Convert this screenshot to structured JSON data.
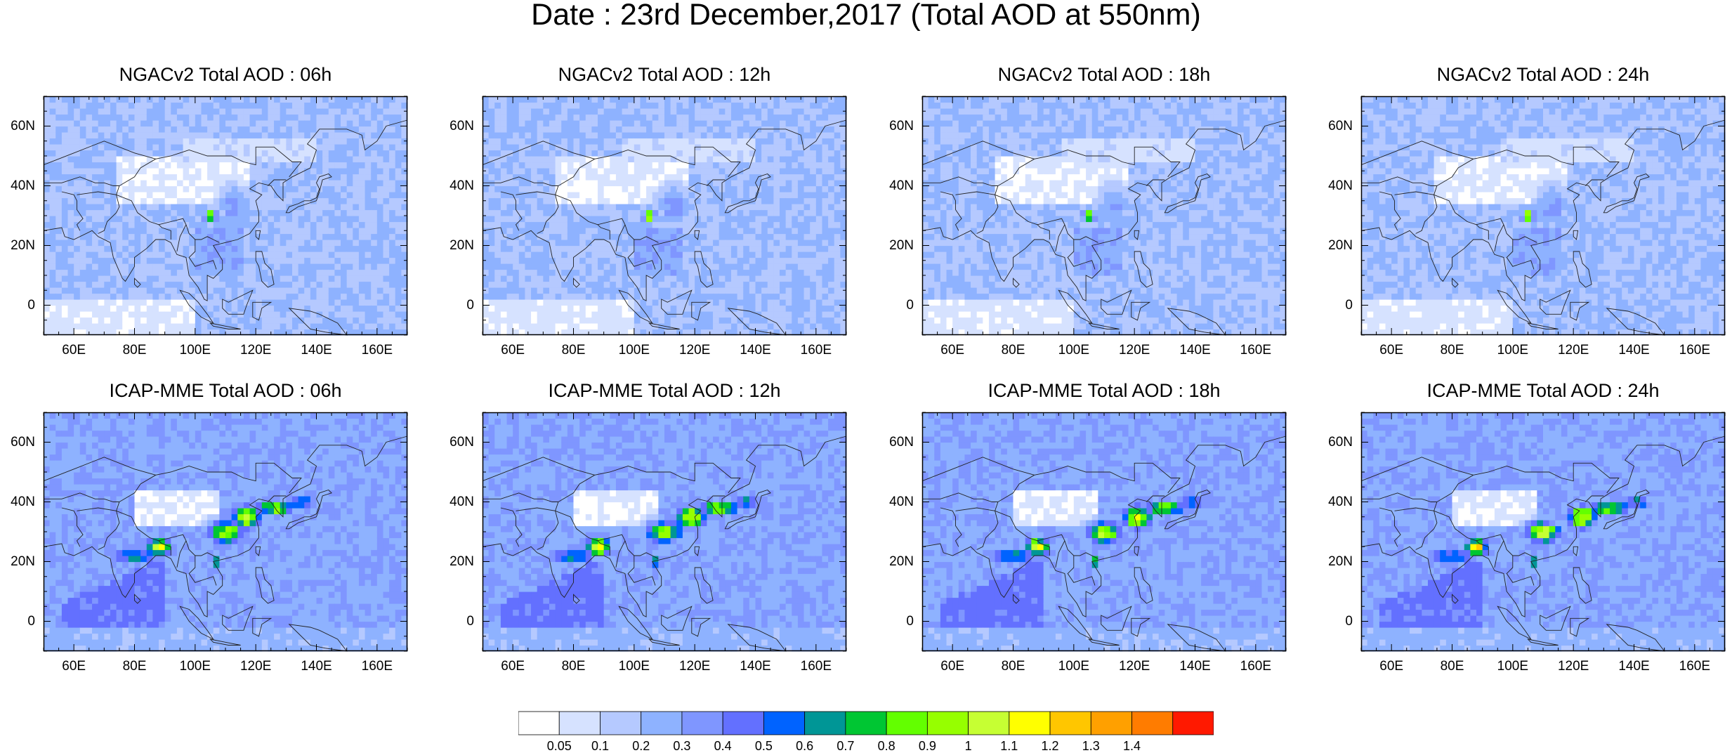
{
  "figure_title": "Date : 23rd December,2017 (Total AOD at 550nm)",
  "panels": [
    {
      "title": "NGACv2 Total AOD : 06h",
      "model": "ngac",
      "hour": 6
    },
    {
      "title": "NGACv2 Total AOD : 12h",
      "model": "ngac",
      "hour": 12
    },
    {
      "title": "NGACv2 Total AOD : 18h",
      "model": "ngac",
      "hour": 18
    },
    {
      "title": "NGACv2 Total AOD : 24h",
      "model": "ngac",
      "hour": 24
    },
    {
      "title": "ICAP-MME Total AOD : 06h",
      "model": "icap",
      "hour": 6
    },
    {
      "title": "ICAP-MME Total AOD : 12h",
      "model": "icap",
      "hour": 12
    },
    {
      "title": "ICAP-MME Total AOD : 18h",
      "model": "icap",
      "hour": 18
    },
    {
      "title": "ICAP-MME Total AOD : 24h",
      "model": "icap",
      "hour": 24
    }
  ],
  "map_extent": {
    "lon": [
      50,
      170
    ],
    "lat": [
      -10,
      70
    ]
  },
  "lon_ticks": [
    "60E",
    "80E",
    "100E",
    "120E",
    "140E",
    "160E"
  ],
  "lat_ticks": [
    "60N",
    "40N",
    "20N",
    "0"
  ],
  "colorbar": {
    "labels": [
      "0.05",
      "0.1",
      "0.2",
      "0.3",
      "0.4",
      "0.5",
      "0.6",
      "0.7",
      "0.8",
      "0.9",
      "1",
      "1.1",
      "1.2",
      "1.3",
      "1.4"
    ],
    "colors": [
      "#ffffff",
      "#d6e2ff",
      "#b5c9ff",
      "#8eb2ff",
      "#7f96ff",
      "#6370ff",
      "#0063ff",
      "#009696",
      "#00c633",
      "#63ff00",
      "#96ff00",
      "#c6ff33",
      "#ffff00",
      "#ffc600",
      "#ffa000",
      "#ff7c00",
      "#ff1900"
    ]
  },
  "hotspots": {
    "ngac": [
      {
        "lon": 105,
        "lat": 30,
        "aod": 1.1,
        "rlon": 2,
        "rlat": 2
      },
      {
        "lon": 113,
        "lat": 33,
        "aod": 0.35,
        "rlon": 6,
        "rlat": 8
      }
    ],
    "icap": [
      {
        "lon": 88,
        "lat": 25,
        "aod": 1.2,
        "rlon": 4,
        "rlat": 3
      },
      {
        "lon": 80,
        "lat": 22,
        "aod": 0.6,
        "rlon": 10,
        "rlat": 4
      },
      {
        "lon": 110,
        "lat": 30,
        "aod": 1.0,
        "rlon": 6,
        "rlat": 4
      },
      {
        "lon": 117,
        "lat": 35,
        "aod": 1.1,
        "rlon": 5,
        "rlat": 4
      },
      {
        "lon": 126,
        "lat": 38,
        "aod": 0.9,
        "rlon": 7,
        "rlat": 3
      },
      {
        "lon": 135,
        "lat": 40,
        "aod": 0.6,
        "rlon": 6,
        "rlat": 3
      },
      {
        "lon": 107,
        "lat": 20,
        "aod": 0.7,
        "rlon": 2,
        "rlat": 3
      }
    ]
  }
}
